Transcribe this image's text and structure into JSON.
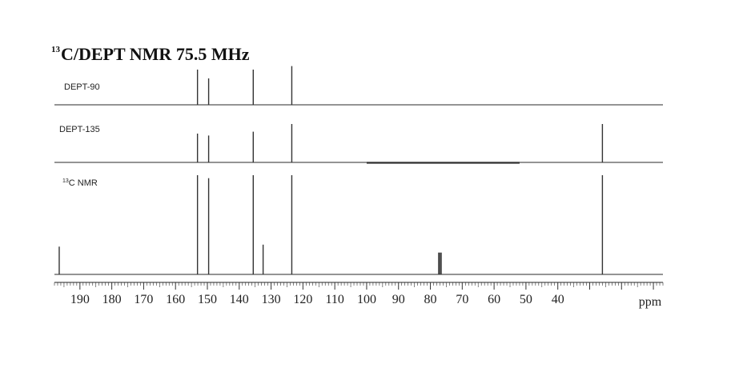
{
  "title": {
    "sup": "13",
    "main": "C/DEPT NMR 75.5 MHz"
  },
  "chart_data": {
    "type": "line",
    "title": "13C/DEPT NMR 75.5 MHz",
    "xlabel": "ppm",
    "xlim": [
      198,
      7
    ],
    "x_reversed": true,
    "x_ticks": [
      190,
      180,
      170,
      160,
      150,
      140,
      130,
      120,
      110,
      100,
      90,
      80,
      70,
      60,
      50,
      40
    ],
    "grid": false,
    "panels": [
      {
        "name": "DEPT-90",
        "label_main": "DEPT-90",
        "peaks": [
          {
            "ppm": 153.1,
            "intensity": 1.0
          },
          {
            "ppm": 149.6,
            "intensity": 0.75
          },
          {
            "ppm": 135.6,
            "intensity": 1.0
          },
          {
            "ppm": 123.5,
            "intensity": 1.1
          }
        ]
      },
      {
        "name": "DEPT-135",
        "label_main": "DEPT-135",
        "peaks": [
          {
            "ppm": 153.1,
            "intensity": 0.75
          },
          {
            "ppm": 149.6,
            "intensity": 0.7
          },
          {
            "ppm": 135.6,
            "intensity": 0.8
          },
          {
            "ppm": 123.5,
            "intensity": 1.0
          },
          {
            "ppm": 26.0,
            "intensity": 1.0
          }
        ]
      },
      {
        "name": "13C NMR",
        "label_sup": "13",
        "label_main": "C NMR",
        "peaks": [
          {
            "ppm": 196.5,
            "intensity": 0.28
          },
          {
            "ppm": 153.1,
            "intensity": 1.0
          },
          {
            "ppm": 149.6,
            "intensity": 0.97
          },
          {
            "ppm": 135.6,
            "intensity": 1.0
          },
          {
            "ppm": 132.5,
            "intensity": 0.3
          },
          {
            "ppm": 123.5,
            "intensity": 1.0
          },
          {
            "ppm": 77.4,
            "intensity": 0.22
          },
          {
            "ppm": 77.0,
            "intensity": 0.22
          },
          {
            "ppm": 76.6,
            "intensity": 0.22
          },
          {
            "ppm": 26.0,
            "intensity": 1.0
          }
        ]
      }
    ]
  }
}
